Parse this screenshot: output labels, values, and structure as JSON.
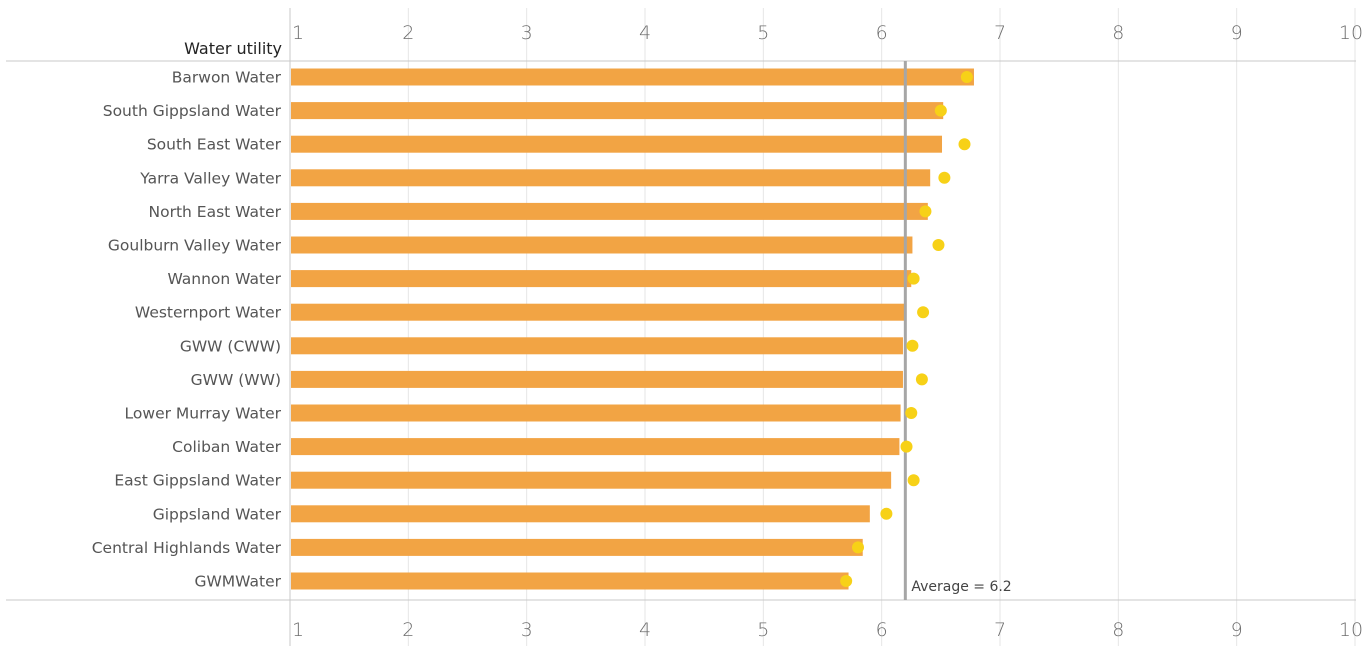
{
  "chart_data": {
    "type": "bar",
    "orientation": "horizontal",
    "row_header": "Water utility",
    "categories": [
      "Barwon Water",
      "South Gippsland Water",
      "South East Water",
      "Yarra Valley Water",
      "North East Water",
      "Goulburn Valley Water",
      "Wannon Water",
      "Westernport Water",
      "GWW (CWW)",
      "GWW (WW)",
      "Lower Murray Water",
      "Coliban Water",
      "East Gippsland Water",
      "Gippsland Water",
      "Central Highlands Water",
      "GWMWater"
    ],
    "series": [
      {
        "mark": "bar",
        "color": "#f2a444",
        "values": [
          6.78,
          6.52,
          6.51,
          6.41,
          6.39,
          6.26,
          6.25,
          6.19,
          6.18,
          6.18,
          6.16,
          6.15,
          6.08,
          5.9,
          5.84,
          5.72
        ]
      },
      {
        "mark": "dot",
        "color": "#f7d117",
        "values": [
          6.72,
          6.5,
          6.7,
          6.53,
          6.37,
          6.48,
          6.27,
          6.35,
          6.26,
          6.34,
          6.25,
          6.21,
          6.27,
          6.04,
          5.8,
          5.7
        ]
      }
    ],
    "reference_line": {
      "value": 6.2,
      "label": "Average = 6.2",
      "color": "#a6a6a6"
    },
    "x_ticks": [
      "1",
      "2",
      "3",
      "4",
      "5",
      "6",
      "7",
      "8",
      "9",
      "10"
    ],
    "xlim": [
      1,
      10
    ],
    "axis_position": "top and bottom",
    "grid": true
  }
}
